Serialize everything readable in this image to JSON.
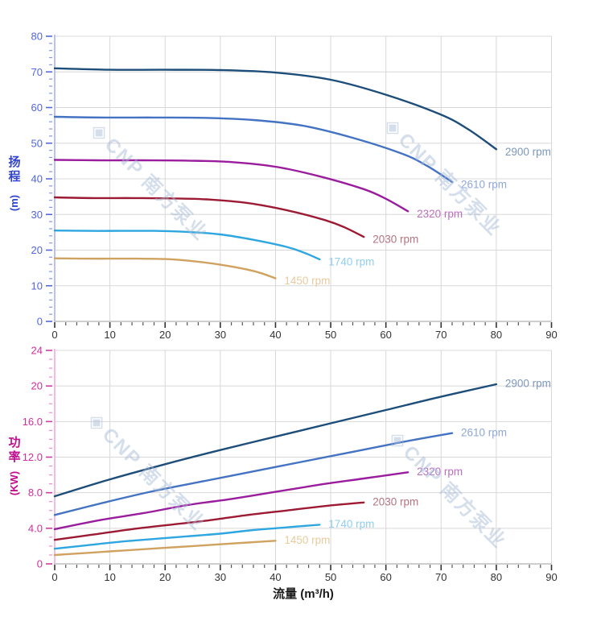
{
  "watermark": {
    "logo_glyph": "◈",
    "text": "CNP 南方泵业"
  },
  "chart_data": [
    {
      "name": "head-vs-flow",
      "type": "line",
      "title": "",
      "ylabel": "扬程",
      "yunit": "(m)",
      "xlabel": "",
      "xlim": [
        0,
        90
      ],
      "ylim": [
        0,
        80
      ],
      "grid": true,
      "legend_position": "curve-end-labels",
      "x_major_ticks": [
        0,
        10,
        20,
        30,
        40,
        50,
        60,
        70,
        80,
        90
      ],
      "x_tick_labels": [
        "0",
        "10",
        "20",
        "30",
        "40",
        "50",
        "60",
        "70",
        "80",
        "90"
      ],
      "x_minor_step": 2,
      "y_major_ticks": [
        0,
        10,
        20,
        30,
        40,
        50,
        60,
        70,
        80
      ],
      "y_tick_labels": [
        "0",
        "10",
        "20",
        "30",
        "40",
        "50",
        "60",
        "70",
        "80"
      ],
      "y_minor_step": 2,
      "series": [
        {
          "name": "2900 rpm",
          "color": "#1d4e79",
          "label_color": "#7d98b9",
          "points": [
            [
              0,
              71
            ],
            [
              10,
              70.6
            ],
            [
              20,
              70.6
            ],
            [
              30,
              70.5
            ],
            [
              40,
              69.8
            ],
            [
              50,
              67.8
            ],
            [
              60,
              63.6
            ],
            [
              70,
              58
            ],
            [
              75,
              53.8
            ],
            [
              80,
              48.3
            ]
          ]
        },
        {
          "name": "2610 rpm",
          "color": "#4573c4",
          "label_color": "#8fa7da",
          "points": [
            [
              0,
              57.4
            ],
            [
              9,
              57.2
            ],
            [
              18,
              57.2
            ],
            [
              27,
              57.1
            ],
            [
              36,
              56.5
            ],
            [
              45,
              54.9
            ],
            [
              54,
              51.5
            ],
            [
              63,
              47
            ],
            [
              67.5,
              43.6
            ],
            [
              72,
              39.1
            ]
          ]
        },
        {
          "name": "2320 rpm",
          "color": "#9a1d9e",
          "label_color": "#bb6fbe",
          "points": [
            [
              0,
              45.3
            ],
            [
              8,
              45.2
            ],
            [
              16,
              45.2
            ],
            [
              24,
              45.1
            ],
            [
              32,
              44.7
            ],
            [
              40,
              43.4
            ],
            [
              48,
              40.7
            ],
            [
              56,
              37.1
            ],
            [
              60,
              34.4
            ],
            [
              64,
              30.9
            ]
          ]
        },
        {
          "name": "2030 rpm",
          "color": "#9d1a34",
          "label_color": "#b5727f",
          "points": [
            [
              0,
              34.8
            ],
            [
              7,
              34.6
            ],
            [
              14,
              34.6
            ],
            [
              21,
              34.5
            ],
            [
              28,
              34.2
            ],
            [
              35,
              33.2
            ],
            [
              42,
              31.2
            ],
            [
              49,
              28.4
            ],
            [
              52.5,
              26.4
            ],
            [
              56,
              23.7
            ]
          ]
        },
        {
          "name": "1740 rpm",
          "color": "#2ea6e0",
          "label_color": "#8fcef1",
          "points": [
            [
              0,
              25.5
            ],
            [
              6,
              25.4
            ],
            [
              12,
              25.4
            ],
            [
              18,
              25.4
            ],
            [
              24,
              25.1
            ],
            [
              30,
              24.4
            ],
            [
              36,
              22.9
            ],
            [
              42,
              20.9
            ],
            [
              45,
              19.4
            ],
            [
              48,
              17.4
            ]
          ]
        },
        {
          "name": "1450 rpm",
          "color": "#d0a260",
          "label_color": "#e8cb9f",
          "points": [
            [
              0,
              17.7
            ],
            [
              5,
              17.6
            ],
            [
              10,
              17.6
            ],
            [
              15,
              17.6
            ],
            [
              20,
              17.5
            ],
            [
              25,
              16.9
            ],
            [
              30,
              15.9
            ],
            [
              35,
              14.5
            ],
            [
              37.5,
              13.5
            ],
            [
              40,
              12.1
            ]
          ]
        }
      ]
    },
    {
      "name": "power-vs-flow",
      "type": "line",
      "title": "",
      "ylabel": "功率",
      "yunit": "(KW)",
      "xlabel": "流量 (m³/h)",
      "xlim": [
        0,
        90
      ],
      "ylim": [
        0,
        24
      ],
      "grid": true,
      "legend_position": "curve-end-labels",
      "x_major_ticks": [
        0,
        10,
        20,
        30,
        40,
        50,
        60,
        70,
        80,
        90
      ],
      "x_tick_labels": [
        "0",
        "10",
        "20",
        "30",
        "40",
        "50",
        "60",
        "70",
        "80",
        "90"
      ],
      "x_minor_step": 2,
      "y_major_ticks": [
        0,
        4,
        8,
        12,
        16,
        20,
        24
      ],
      "y_tick_labels": [
        "0",
        "4.0",
        "8.0",
        "12.0",
        "16.0",
        "20",
        "24"
      ],
      "y_minor_step": 1,
      "series": [
        {
          "name": "2900 rpm",
          "color": "#1d4e79",
          "label_color": "#7d98b9",
          "points": [
            [
              0,
              7.6
            ],
            [
              10,
              9.5
            ],
            [
              20,
              11.2
            ],
            [
              30,
              12.8
            ],
            [
              40,
              14.3
            ],
            [
              50,
              15.8
            ],
            [
              60,
              17.3
            ],
            [
              70,
              18.8
            ],
            [
              80,
              20.2
            ]
          ]
        },
        {
          "name": "2610 rpm",
          "color": "#4573c4",
          "label_color": "#8fa7da",
          "points": [
            [
              0,
              5.5
            ],
            [
              9,
              6.9
            ],
            [
              18,
              8.2
            ],
            [
              27,
              9.3
            ],
            [
              36,
              10.4
            ],
            [
              45,
              11.5
            ],
            [
              54,
              12.6
            ],
            [
              63,
              13.7
            ],
            [
              72,
              14.7
            ]
          ]
        },
        {
          "name": "2320 rpm",
          "color": "#9a1d9e",
          "label_color": "#bb6fbe",
          "points": [
            [
              0,
              3.9
            ],
            [
              8,
              4.9
            ],
            [
              16,
              5.7
            ],
            [
              24,
              6.6
            ],
            [
              32,
              7.3
            ],
            [
              40,
              8.1
            ],
            [
              48,
              8.9
            ],
            [
              56,
              9.6
            ],
            [
              64,
              10.3
            ]
          ]
        },
        {
          "name": "2030 rpm",
          "color": "#9d1a34",
          "label_color": "#b5727f",
          "points": [
            [
              0,
              2.7
            ],
            [
              7,
              3.3
            ],
            [
              14,
              3.9
            ],
            [
              21,
              4.4
            ],
            [
              28,
              4.9
            ],
            [
              35,
              5.5
            ],
            [
              42,
              6.0
            ],
            [
              49,
              6.5
            ],
            [
              56,
              6.9
            ]
          ]
        },
        {
          "name": "1740 rpm",
          "color": "#2ea6e0",
          "label_color": "#8fcef1",
          "points": [
            [
              0,
              1.7
            ],
            [
              6,
              2.1
            ],
            [
              12,
              2.5
            ],
            [
              18,
              2.8
            ],
            [
              24,
              3.1
            ],
            [
              30,
              3.4
            ],
            [
              36,
              3.8
            ],
            [
              42,
              4.1
            ],
            [
              48,
              4.4
            ]
          ]
        },
        {
          "name": "1450 rpm",
          "color": "#d0a260",
          "label_color": "#e8cb9f",
          "points": [
            [
              0,
              1.0
            ],
            [
              5,
              1.2
            ],
            [
              10,
              1.4
            ],
            [
              15,
              1.6
            ],
            [
              20,
              1.8
            ],
            [
              25,
              2.0
            ],
            [
              30,
              2.2
            ],
            [
              35,
              2.4
            ],
            [
              40,
              2.6
            ]
          ]
        }
      ]
    }
  ]
}
